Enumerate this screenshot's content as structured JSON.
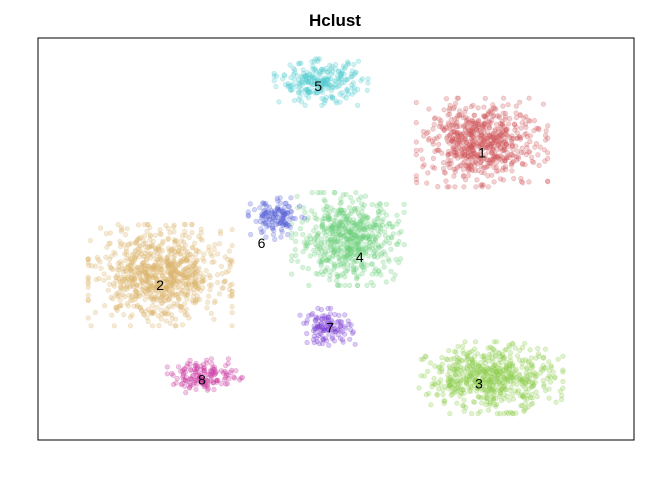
{
  "chart_data": {
    "type": "scatter",
    "title": "Hclust",
    "xlabel": "",
    "ylabel": "",
    "axes_visible": false,
    "grid": false,
    "legend": "none",
    "xlim": [
      0,
      100
    ],
    "ylim": [
      0,
      100
    ],
    "clusters": [
      {
        "label": "1",
        "color": "#d2595f",
        "center": [
          74.5,
          74.0
        ],
        "spread": [
          10.5,
          10.5
        ],
        "label_pos": [
          74.5,
          71.5
        ]
      },
      {
        "label": "2",
        "color": "#dcb46a",
        "center": [
          20.5,
          41.0
        ],
        "spread": [
          11.5,
          12.0
        ],
        "label_pos": [
          20.5,
          38.5
        ]
      },
      {
        "label": "3",
        "color": "#8ccd4b",
        "center": [
          76.0,
          15.5
        ],
        "spread": [
          11.5,
          8.5
        ],
        "label_pos": [
          74.0,
          14.0
        ]
      },
      {
        "label": "4",
        "color": "#6fd27e",
        "center": [
          52.0,
          50.0
        ],
        "spread": [
          9.0,
          11.0
        ],
        "label_pos": [
          54.0,
          45.5
        ]
      },
      {
        "label": "5",
        "color": "#52cbd0",
        "center": [
          47.5,
          89.0
        ],
        "spread": [
          7.5,
          5.5
        ],
        "label_pos": [
          47.0,
          88.0
        ]
      },
      {
        "label": "6",
        "color": "#5a64d7",
        "center": [
          40.0,
          55.0
        ],
        "spread": [
          4.5,
          5.0
        ],
        "label_pos": [
          37.5,
          49.0
        ]
      },
      {
        "label": "7",
        "color": "#7c3fd4",
        "center": [
          48.5,
          28.0
        ],
        "spread": [
          4.5,
          4.5
        ],
        "label_pos": [
          49.0,
          28.0
        ]
      },
      {
        "label": "8",
        "color": "#c8329f",
        "center": [
          28.0,
          16.0
        ],
        "spread": [
          6.0,
          4.0
        ],
        "label_pos": [
          27.5,
          15.0
        ]
      }
    ]
  }
}
